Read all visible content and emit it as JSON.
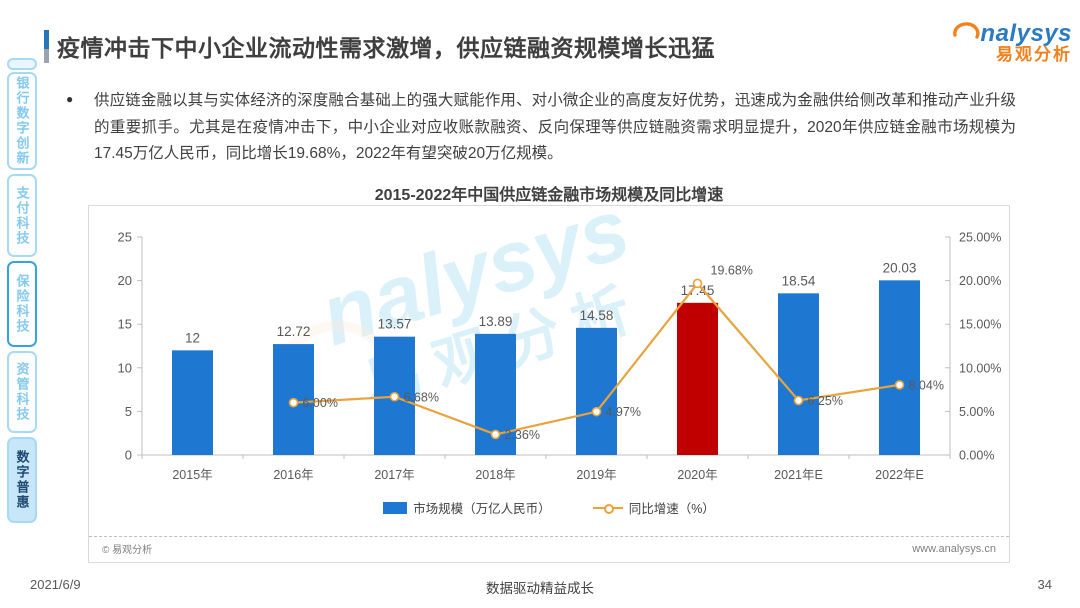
{
  "header": {
    "title": "疫情冲击下中小企业流动性需求激增，供应链融资规模增长迅猛",
    "logo": {
      "brand": "nalysys",
      "brand_cn": "易观分析"
    }
  },
  "sidebar": {
    "items": [
      {
        "label": "银行数字创新"
      },
      {
        "label": "支付科技"
      },
      {
        "label": "保险科技"
      },
      {
        "label": "资管科技"
      },
      {
        "label": "数字普惠"
      }
    ],
    "active_index": 4,
    "highlighted_index": 2
  },
  "body": {
    "bullet_text": "供应链金融以其与实体经济的深度融合基础上的强大赋能作用、对小微企业的高度友好优势，迅速成为金融供给侧改革和推动产业升级的重要抓手。尤其是在疫情冲击下，中小企业对应收账款融资、反向保理等供应链融资需求明显提升，2020年供应链金融市场规模为17.45万亿人民币，同比增长19.68%，2022年有望突破20万亿规模。"
  },
  "chart_data": {
    "type": "bar",
    "title": "2015-2022年中国供应链金融市场规模及同比增速",
    "categories": [
      "2015年",
      "2016年",
      "2017年",
      "2018年",
      "2019年",
      "2020年",
      "2021年E",
      "2022年E"
    ],
    "series": [
      {
        "name": "市场规模（万亿人民币）",
        "type": "bar",
        "values": [
          12,
          12.72,
          13.57,
          13.89,
          14.58,
          17.45,
          18.54,
          20.03
        ],
        "labels": [
          "12",
          "12.72",
          "13.57",
          "13.89",
          "14.58",
          "17.45",
          "18.54",
          "20.03"
        ],
        "colors": [
          "#1E78D2",
          "#1E78D2",
          "#1E78D2",
          "#1E78D2",
          "#1E78D2",
          "#C00000",
          "#1E78D2",
          "#1E78D2"
        ]
      },
      {
        "name": "同比增速（%）",
        "type": "line",
        "values": [
          null,
          6.0,
          6.68,
          2.36,
          4.97,
          19.68,
          6.25,
          8.04
        ],
        "labels": [
          "",
          "6.00%",
          "6.68%",
          "2.36%",
          "4.97%",
          "19.68%",
          "6.25%",
          "8.04%"
        ],
        "color": "#E8A33D"
      }
    ],
    "left_axis": {
      "ticks": [
        "0",
        "5",
        "10",
        "15",
        "20",
        "25"
      ],
      "min": 0,
      "max": 25
    },
    "right_axis": {
      "ticks": [
        "0.00%",
        "5.00%",
        "10.00%",
        "15.00%",
        "20.00%",
        "25.00%"
      ],
      "min": 0,
      "max": 25
    },
    "grid": false,
    "legend_position": "bottom",
    "axis_color": "#BFBFBF",
    "label_color": "#595959",
    "copyright": "© 易观分析",
    "website": "www.analysys.cn",
    "watermark_brand": "nalysys",
    "watermark_cn": "易观分析"
  },
  "footer": {
    "date": "2021/6/9",
    "slogan": "数据驱动精益成长",
    "page_number": "34"
  }
}
